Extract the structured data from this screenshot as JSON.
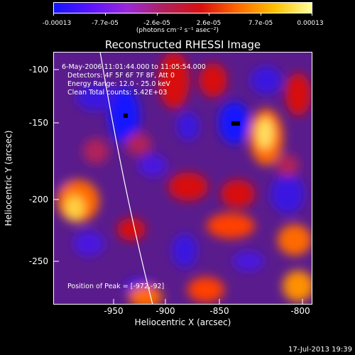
{
  "colorbar": {
    "tick_labels": [
      "-0.00013",
      "-7.7e-05",
      "-2.6e-05",
      "2.6e-05",
      "7.7e-05",
      "0.00013"
    ],
    "units": "(photons cm⁻² s⁻¹ asec⁻²)",
    "colors": [
      "#1414ff",
      "#5a14ff",
      "#9a28d8",
      "#b0205a",
      "#d81010",
      "#ff6a00",
      "#ffc000",
      "#ffff9a"
    ]
  },
  "title": "Reconstructed RHESSI Image",
  "annotations": {
    "time": "6-May-2006 11:01:44.000 to 11:05:54.000",
    "detectors": "Detectors: 4F 5F 6F 7F 8F, Att 0",
    "energy": "Energy Range: 12.0 - 25.0 keV",
    "clean": "Clean     Total counts: 5.42E+03",
    "peak": "Position of Peak = [-972,-92]"
  },
  "axes": {
    "xlabel": "Heliocentric X (arcsec)",
    "ylabel": "Heliocentric Y (arcsec)",
    "xticks": [
      "-950",
      "-900",
      "-850",
      "-800"
    ],
    "yticks": [
      "-100",
      "-150",
      "-200",
      "-250"
    ]
  },
  "timestamp": "17-Jul-2013 19:39"
}
